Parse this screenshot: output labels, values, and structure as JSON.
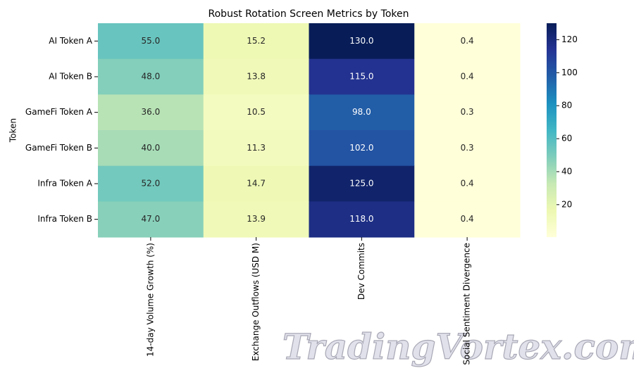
{
  "chart_data": {
    "type": "heatmap",
    "title": "Robust Rotation Screen Metrics by Token",
    "ylabel": "Token",
    "rows": [
      "AI Token A",
      "AI Token B",
      "GameFi Token A",
      "GameFi Token B",
      "Infra Token A",
      "Infra Token B"
    ],
    "columns": [
      "14-day Volume Growth (%)",
      "Exchange Outflows (USD M)",
      "Dev Commits",
      "Social Sentiment Divergence"
    ],
    "values": [
      [
        55,
        15.2,
        130,
        0.4
      ],
      [
        48,
        13.8,
        115,
        0.4
      ],
      [
        36,
        10.5,
        98,
        0.3
      ],
      [
        40,
        11.3,
        102,
        0.3
      ],
      [
        52,
        14.7,
        125,
        0.4
      ],
      [
        47,
        13.9,
        118,
        0.4
      ]
    ],
    "value_labels": [
      [
        "55.0",
        "15.2",
        "130.0",
        "0.4"
      ],
      [
        "48.0",
        "13.8",
        "115.0",
        "0.4"
      ],
      [
        "36.0",
        "10.5",
        "98.0",
        "0.3"
      ],
      [
        "40.0",
        "11.3",
        "102.0",
        "0.3"
      ],
      [
        "52.0",
        "14.7",
        "125.0",
        "0.4"
      ],
      [
        "47.0",
        "13.9",
        "118.0",
        "0.4"
      ]
    ],
    "colormap": [
      "#ffffd9",
      "#edf8b1",
      "#c7e9b4",
      "#7fcdbb",
      "#41b6c4",
      "#1d91c0",
      "#225ea8",
      "#253494",
      "#081d58"
    ],
    "clim": [
      0.3,
      130
    ],
    "colorbar_ticks": [
      20,
      40,
      60,
      80,
      100,
      120
    ]
  },
  "watermark": "TradingVortex.com"
}
